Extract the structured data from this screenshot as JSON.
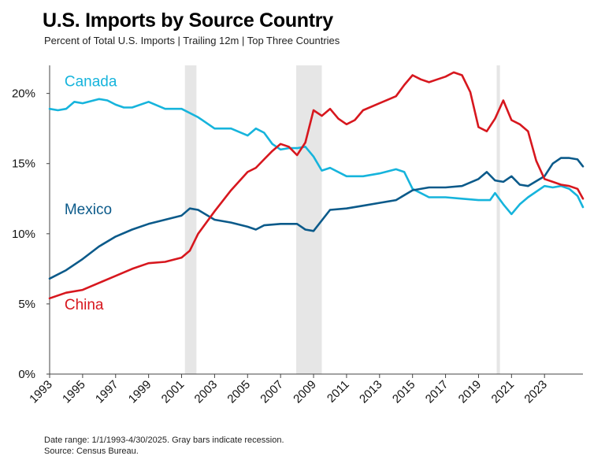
{
  "title": "U.S. Imports by Source Country",
  "subtitle": "Percent of Total U.S. Imports | Trailing 12m | Top Three Countries",
  "notes": {
    "line1": "Date range: 1/1/1993-4/30/2025. Gray bars indicate recession.",
    "line2": "Source: Census Bureau."
  },
  "chart_data": {
    "type": "line",
    "title": "U.S. Imports by Source Country",
    "subtitle": "Percent of Total U.S. Imports | Trailing 12m | Top Three Countries",
    "xlabel": "",
    "ylabel": "",
    "xlim": [
      1993,
      2025.33
    ],
    "ylim": [
      0,
      22
    ],
    "grid": false,
    "y_ticks": [
      0,
      5,
      10,
      15,
      20
    ],
    "y_tick_labels": [
      "0%",
      "5%",
      "10%",
      "15%",
      "20%"
    ],
    "x_ticks": [
      1993,
      1995,
      1997,
      1999,
      2001,
      2003,
      2005,
      2007,
      2009,
      2011,
      2013,
      2015,
      2017,
      2019,
      2021,
      2023
    ],
    "x_tick_labels": [
      "1993",
      "1995",
      "1997",
      "1999",
      "2001",
      "2003",
      "2005",
      "2007",
      "2009",
      "2011",
      "2013",
      "2015",
      "2017",
      "2019",
      "2021",
      "2023"
    ],
    "recessions": [
      {
        "start": 2001.2,
        "end": 2001.9
      },
      {
        "start": 2007.95,
        "end": 2009.5
      },
      {
        "start": 2020.1,
        "end": 2020.3
      }
    ],
    "series": [
      {
        "name": "Canada",
        "color": "#16b4dc",
        "label_at": [
          1993.9,
          20.5
        ],
        "x": [
          1993,
          1993.5,
          1994,
          1994.5,
          1995,
          1996,
          1996.5,
          1997,
          1997.5,
          1998,
          1999,
          2000,
          2001,
          2002,
          2003,
          2004,
          2005,
          2005.5,
          2006,
          2006.5,
          2007,
          2007.5,
          2008,
          2008.5,
          2009,
          2009.5,
          2010,
          2011,
          2012,
          2013,
          2014,
          2014.5,
          2015,
          2016,
          2017,
          2018,
          2019,
          2019.7,
          2020,
          2020.5,
          2021,
          2021.5,
          2022,
          2023,
          2023.5,
          2024,
          2024.5,
          2025,
          2025.33
        ],
        "values": [
          18.9,
          18.8,
          18.9,
          19.4,
          19.3,
          19.6,
          19.5,
          19.2,
          19.0,
          19.0,
          19.4,
          18.9,
          18.9,
          18.3,
          17.5,
          17.5,
          17.0,
          17.5,
          17.2,
          16.4,
          16.0,
          16.1,
          16.1,
          16.2,
          15.5,
          14.5,
          14.7,
          14.1,
          14.1,
          14.3,
          14.6,
          14.4,
          13.2,
          12.6,
          12.6,
          12.5,
          12.4,
          12.4,
          12.9,
          12.1,
          11.4,
          12.1,
          12.6,
          13.4,
          13.3,
          13.4,
          13.2,
          12.7,
          11.9
        ]
      },
      {
        "name": "Mexico",
        "color": "#0b5a8a",
        "label_at": [
          1993.9,
          11.4
        ],
        "x": [
          1993,
          1994,
          1995,
          1996,
          1997,
          1998,
          1999,
          2000,
          2001,
          2001.5,
          2002,
          2003,
          2004,
          2005,
          2005.5,
          2006,
          2007,
          2008,
          2008.5,
          2009,
          2010,
          2011,
          2012,
          2013,
          2014,
          2015,
          2016,
          2017,
          2018,
          2019,
          2019.5,
          2020,
          2020.5,
          2021,
          2021.5,
          2022,
          2023,
          2023.5,
          2024,
          2024.5,
          2025,
          2025.33
        ],
        "values": [
          6.8,
          7.4,
          8.2,
          9.1,
          9.8,
          10.3,
          10.7,
          11.0,
          11.3,
          11.8,
          11.7,
          11.0,
          10.8,
          10.5,
          10.3,
          10.6,
          10.7,
          10.7,
          10.3,
          10.2,
          11.7,
          11.8,
          12.0,
          12.2,
          12.4,
          13.1,
          13.3,
          13.3,
          13.4,
          13.9,
          14.4,
          13.8,
          13.7,
          14.1,
          13.5,
          13.4,
          14.1,
          15.0,
          15.4,
          15.4,
          15.3,
          14.8
        ]
      },
      {
        "name": "China",
        "color": "#d7171e",
        "label_at": [
          1993.9,
          4.6
        ],
        "x": [
          1993,
          1994,
          1995,
          1996,
          1997,
          1998,
          1999,
          2000,
          2001,
          2001.5,
          2002,
          2003,
          2004,
          2005,
          2005.5,
          2006,
          2006.5,
          2007,
          2007.5,
          2008,
          2008.5,
          2009,
          2009.5,
          2010,
          2010.5,
          2011,
          2011.5,
          2012,
          2013,
          2014,
          2014.5,
          2015,
          2015.5,
          2016,
          2016.5,
          2017,
          2017.5,
          2018,
          2018.5,
          2019,
          2019.5,
          2020,
          2020.5,
          2021,
          2021.5,
          2022,
          2022.5,
          2023,
          2023.5,
          2024,
          2024.5,
          2025,
          2025.33
        ],
        "values": [
          5.4,
          5.8,
          6.0,
          6.5,
          7.0,
          7.5,
          7.9,
          8.0,
          8.3,
          8.8,
          10.0,
          11.6,
          13.1,
          14.4,
          14.7,
          15.3,
          15.9,
          16.4,
          16.2,
          15.6,
          16.5,
          18.8,
          18.4,
          18.9,
          18.2,
          17.8,
          18.1,
          18.8,
          19.3,
          19.8,
          20.6,
          21.3,
          21.0,
          20.8,
          21.0,
          21.2,
          21.5,
          21.3,
          20.1,
          17.6,
          17.3,
          18.2,
          19.5,
          18.1,
          17.8,
          17.3,
          15.2,
          13.9,
          13.7,
          13.5,
          13.4,
          13.2,
          12.5
        ]
      }
    ]
  }
}
